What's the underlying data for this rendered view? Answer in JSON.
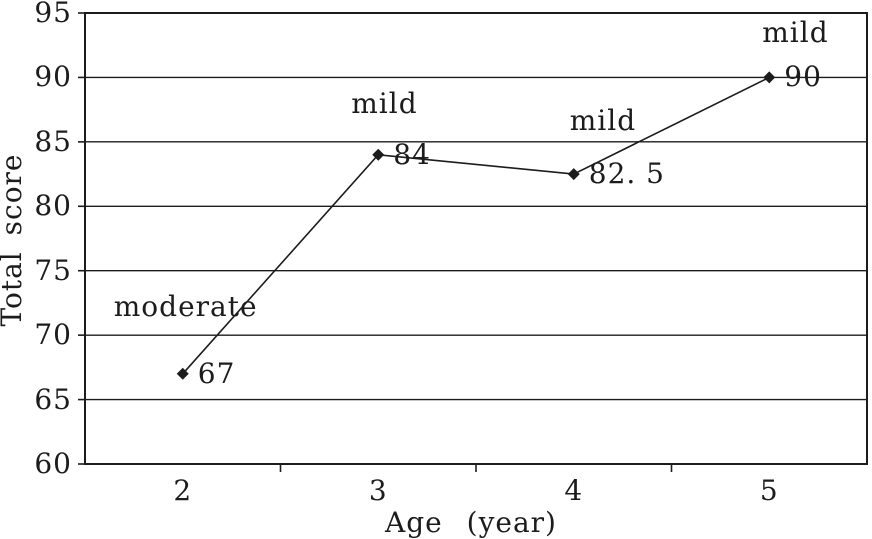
{
  "figure": {
    "background": "#ffffff",
    "ink_color": "#1c1c1c"
  },
  "chart_data": {
    "type": "line",
    "title": "",
    "xlabel": "Age (year)",
    "ylabel": "Total score",
    "categories": [
      "2",
      "3",
      "4",
      "5"
    ],
    "x_values": [
      2,
      3,
      4,
      5
    ],
    "series": [
      {
        "name": "Total score",
        "values": [
          67,
          84,
          82.5,
          90
        ],
        "point_labels": [
          "67",
          "84",
          "82. 5",
          "90"
        ],
        "severity_annotations": [
          "moderate",
          "mild",
          "mild",
          "mild"
        ],
        "marker": "diamond",
        "color": "#1c1c1c"
      }
    ],
    "ylim": [
      60,
      95
    ],
    "ytick_step": 5,
    "yticks": [
      95,
      90,
      85,
      80,
      75,
      70,
      65,
      60
    ],
    "grid": "horizontal",
    "legend": "none"
  }
}
